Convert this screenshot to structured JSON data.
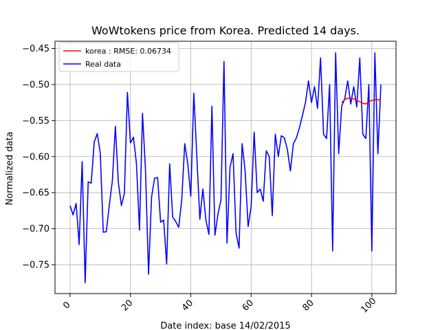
{
  "chart_data": {
    "type": "line",
    "title": "WoWtokens price from Korea. Predicted 14 days.",
    "xlabel": "Date index: base 14/02/2015",
    "ylabel": "Normalized data",
    "xlim": [
      -5,
      108
    ],
    "ylim": [
      -0.79,
      -0.44
    ],
    "x_ticks": [
      0,
      20,
      40,
      60,
      80,
      100
    ],
    "y_ticks": [
      -0.45,
      -0.5,
      -0.55,
      -0.6,
      -0.65,
      -0.7,
      -0.75
    ],
    "y_tick_labels": [
      "−0.45",
      "−0.50",
      "−0.55",
      "−0.60",
      "−0.65",
      "−0.70",
      "−0.75"
    ],
    "grid": true,
    "legend_position": "top-left",
    "series": [
      {
        "name": "Real data",
        "color": "#0000ff",
        "x": [
          0,
          1,
          2,
          3,
          4,
          5,
          6,
          7,
          8,
          9,
          10,
          11,
          12,
          13,
          14,
          15,
          16,
          17,
          18,
          19,
          20,
          21,
          22,
          23,
          24,
          25,
          26,
          27,
          28,
          29,
          30,
          31,
          32,
          33,
          34,
          35,
          36,
          37,
          38,
          39,
          40,
          41,
          42,
          43,
          44,
          45,
          46,
          47,
          48,
          49,
          50,
          51,
          52,
          53,
          54,
          55,
          56,
          57,
          58,
          59,
          60,
          61,
          62,
          63,
          64,
          65,
          66,
          67,
          68,
          69,
          70,
          71,
          72,
          73,
          74,
          75,
          76,
          77,
          78,
          79,
          80,
          81,
          82,
          83,
          84,
          85,
          86,
          87,
          88,
          89,
          90,
          91,
          92,
          93,
          94,
          95,
          96,
          97,
          98,
          99,
          100,
          101,
          102,
          103
        ],
        "values": [
          -0.668,
          -0.681,
          -0.665,
          -0.722,
          -0.607,
          -0.775,
          -0.635,
          -0.637,
          -0.58,
          -0.568,
          -0.595,
          -0.705,
          -0.704,
          -0.667,
          -0.634,
          -0.558,
          -0.636,
          -0.668,
          -0.651,
          -0.511,
          -0.581,
          -0.573,
          -0.61,
          -0.702,
          -0.54,
          -0.62,
          -0.763,
          -0.656,
          -0.63,
          -0.629,
          -0.691,
          -0.688,
          -0.749,
          -0.61,
          -0.684,
          -0.69,
          -0.698,
          -0.66,
          -0.582,
          -0.61,
          -0.655,
          -0.512,
          -0.6,
          -0.687,
          -0.645,
          -0.688,
          -0.708,
          -0.53,
          -0.709,
          -0.68,
          -0.66,
          -0.468,
          -0.72,
          -0.615,
          -0.596,
          -0.706,
          -0.727,
          -0.582,
          -0.62,
          -0.697,
          -0.669,
          -0.566,
          -0.65,
          -0.645,
          -0.662,
          -0.592,
          -0.6,
          -0.682,
          -0.569,
          -0.6,
          -0.571,
          -0.574,
          -0.59,
          -0.62,
          -0.582,
          -0.574,
          -0.56,
          -0.543,
          -0.525,
          -0.495,
          -0.525,
          -0.503,
          -0.533,
          -0.463,
          -0.569,
          -0.575,
          -0.5,
          -0.731,
          -0.456,
          -0.596,
          -0.53,
          -0.52,
          -0.495,
          -0.527,
          -0.503,
          -0.531,
          -0.463,
          -0.569,
          -0.575,
          -0.5,
          -0.731,
          -0.456,
          -0.596,
          -0.5
        ]
      },
      {
        "name": "korea : RMSE: 0.06734",
        "color": "#ff0000",
        "x": [
          90,
          91,
          92,
          93,
          94,
          95,
          96,
          97,
          98,
          99,
          100,
          101,
          102,
          103
        ],
        "values": [
          -0.525,
          -0.521,
          -0.519,
          -0.519,
          -0.52,
          -0.522,
          -0.524,
          -0.526,
          -0.527,
          -0.524,
          -0.522,
          -0.521,
          -0.521,
          -0.522
        ]
      }
    ]
  }
}
